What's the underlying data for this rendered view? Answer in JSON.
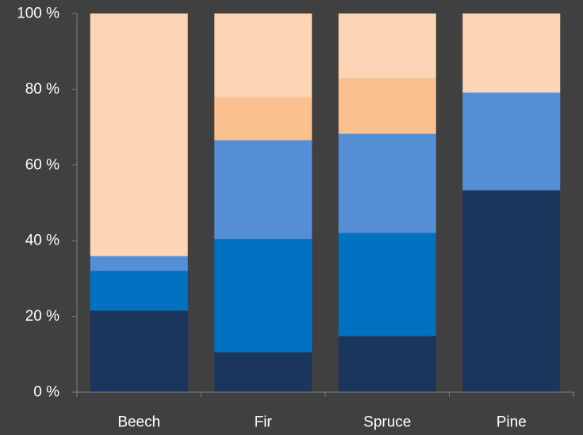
{
  "chart_data": {
    "type": "bar",
    "stacked": true,
    "percent_stacked": true,
    "categories": [
      "Beech",
      "Fir",
      "Spruce",
      "Pine"
    ],
    "series": [
      {
        "color": "#1a365d",
        "values": [
          21.5,
          10.5,
          14.8,
          53.3
        ]
      },
      {
        "color": "#0070c0",
        "values": [
          10.5,
          29.9,
          27.2,
          0
        ]
      },
      {
        "color": "#558ed5",
        "values": [
          3.9,
          26.1,
          26.2,
          25.8
        ]
      },
      {
        "color": "#fac090",
        "values": [
          0,
          11.3,
          14.7,
          0
        ]
      },
      {
        "color": "#fcd5b5",
        "values": [
          64.1,
          22.2,
          17.1,
          20.9
        ]
      }
    ],
    "ylim": [
      0,
      100
    ],
    "yticks": [
      0,
      20,
      40,
      60,
      80,
      100
    ],
    "ytick_labels": [
      "0 %",
      "20 %",
      "40 %",
      "60 %",
      "80 %",
      "100 %"
    ],
    "title": "",
    "xlabel": "",
    "ylabel": "",
    "grid": false,
    "legend": "none"
  },
  "colors": {
    "background": "#404040",
    "axis": "#7f7f7f",
    "text": "#ffffff"
  }
}
